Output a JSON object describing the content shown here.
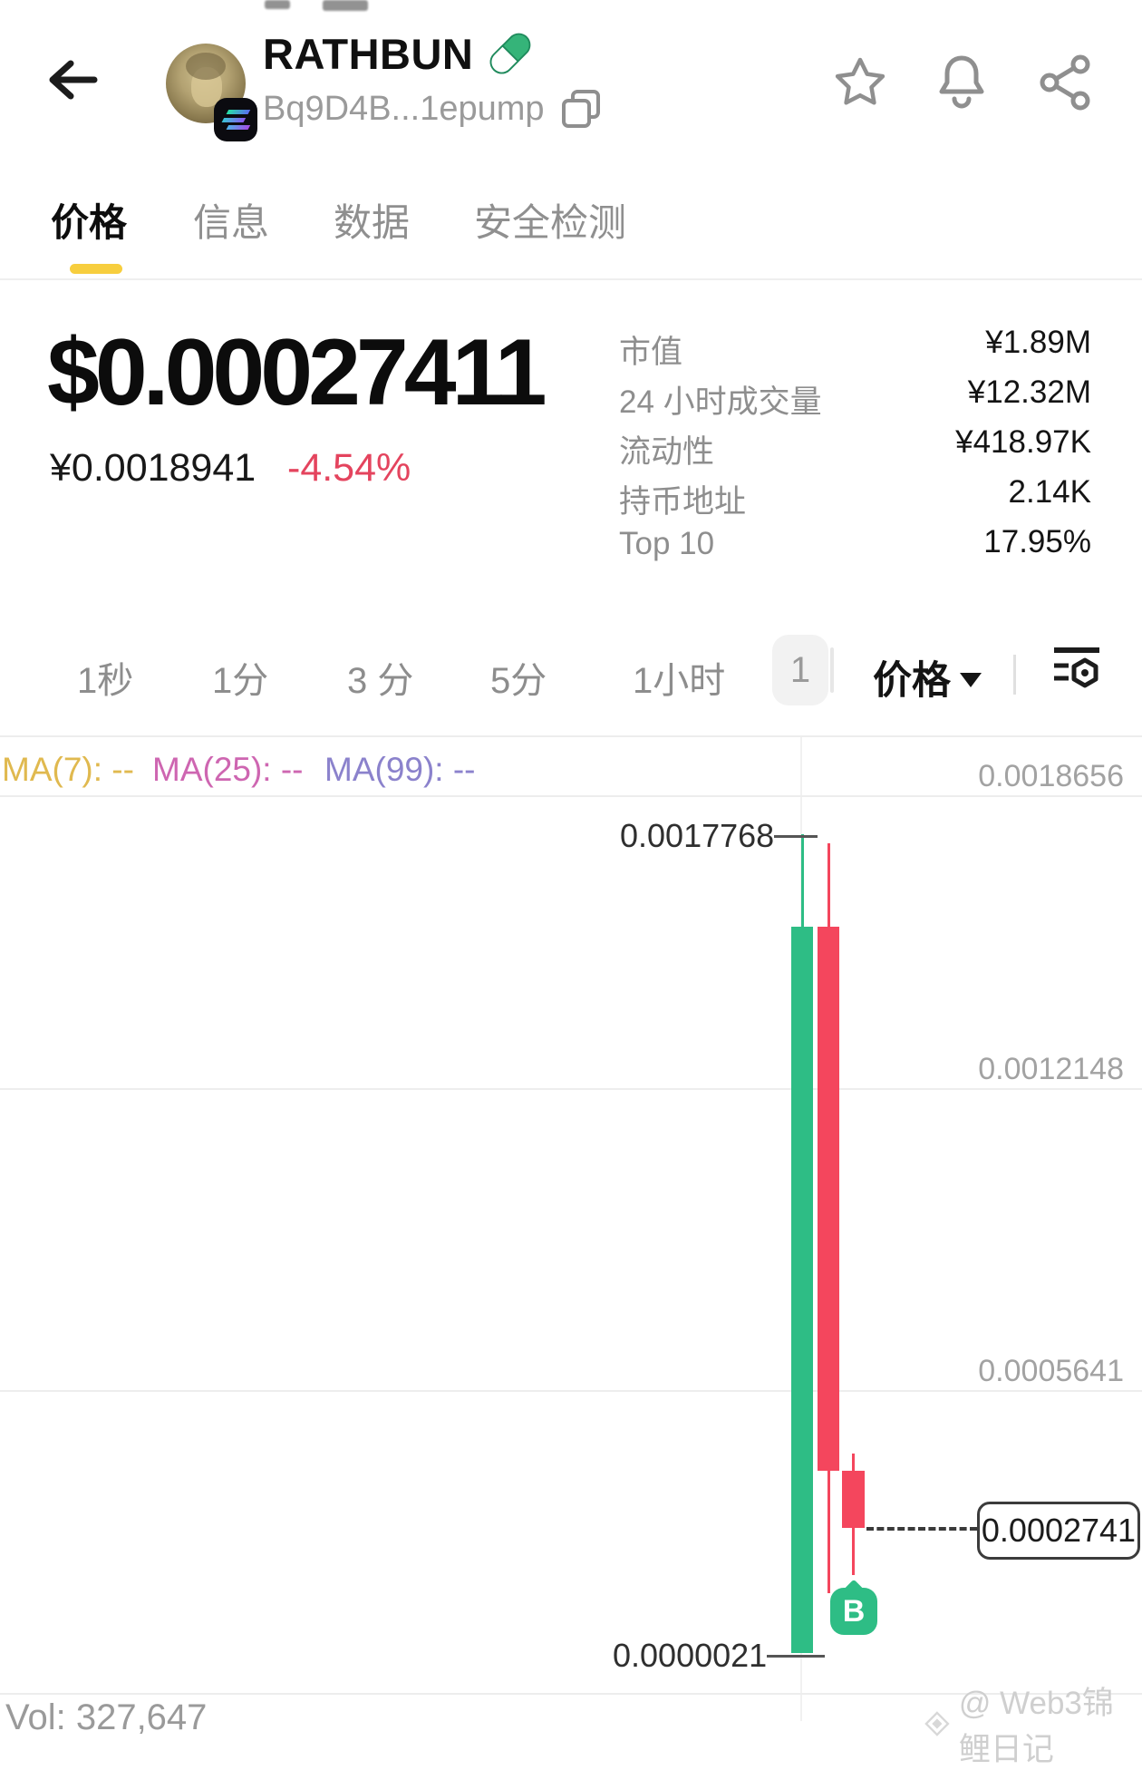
{
  "header": {
    "token_name": "RATHBUN",
    "token_address": "Bq9D4B...1epump"
  },
  "tabs": [
    {
      "label": "价格"
    },
    {
      "label": "信息"
    },
    {
      "label": "数据"
    },
    {
      "label": "安全检测"
    }
  ],
  "price": {
    "usd": "$0.00027411",
    "cny": "¥0.0018941",
    "change": "-4.54%"
  },
  "stats": [
    {
      "label": "市值",
      "value": "¥1.89M"
    },
    {
      "label": "24 小时成交量",
      "value": "¥12.32M"
    },
    {
      "label": "流动性",
      "value": "¥418.97K"
    },
    {
      "label": "持币地址",
      "value": "2.14K"
    },
    {
      "label": "Top 10",
      "value": "17.95%"
    }
  ],
  "intervals": [
    "1秒",
    "1分",
    "3 分",
    "5分",
    "1小时"
  ],
  "interval_more": "1",
  "chart_type_selector": "价格",
  "chart_data": {
    "type": "candlestick",
    "title": "RATHBUN price chart",
    "ma_legend": [
      {
        "label": "MA(7):",
        "value": "--",
        "color": "#E0B94F"
      },
      {
        "label": "MA(25):",
        "value": "--",
        "color": "#CE66B1"
      },
      {
        "label": "MA(99):",
        "value": "--",
        "color": "#8B82CC"
      }
    ],
    "y_axis_labels": [
      "0.0018656",
      "0.0012148",
      "0.0005641"
    ],
    "high_label": "0.0017768",
    "low_label": "0.0000021",
    "last_price": "0.0002741",
    "buy_marker": "B",
    "axis": {
      "price_top_anchor": 0.0017768,
      "price_bottom_anchor": 2.1e-06,
      "grid": true
    },
    "candles": [
      {
        "open": 2.1e-06,
        "high": 0.0017768,
        "low": 2.1e-06,
        "close": 0.0015763,
        "dir": "up"
      },
      {
        "open": 0.0015763,
        "high": 0.0017571,
        "low": 0.0001319,
        "close": 0.0003972,
        "dir": "down"
      },
      {
        "open": 0.0003972,
        "high": 0.0004345,
        "low": 0.0001711,
        "close": 0.0002741,
        "dir": "down"
      }
    ],
    "colors": {
      "up": "#2EBD85",
      "down": "#F4465D"
    },
    "volume_text": "Vol: 327,647"
  },
  "watermark": "@ Web3锦鲤日记"
}
